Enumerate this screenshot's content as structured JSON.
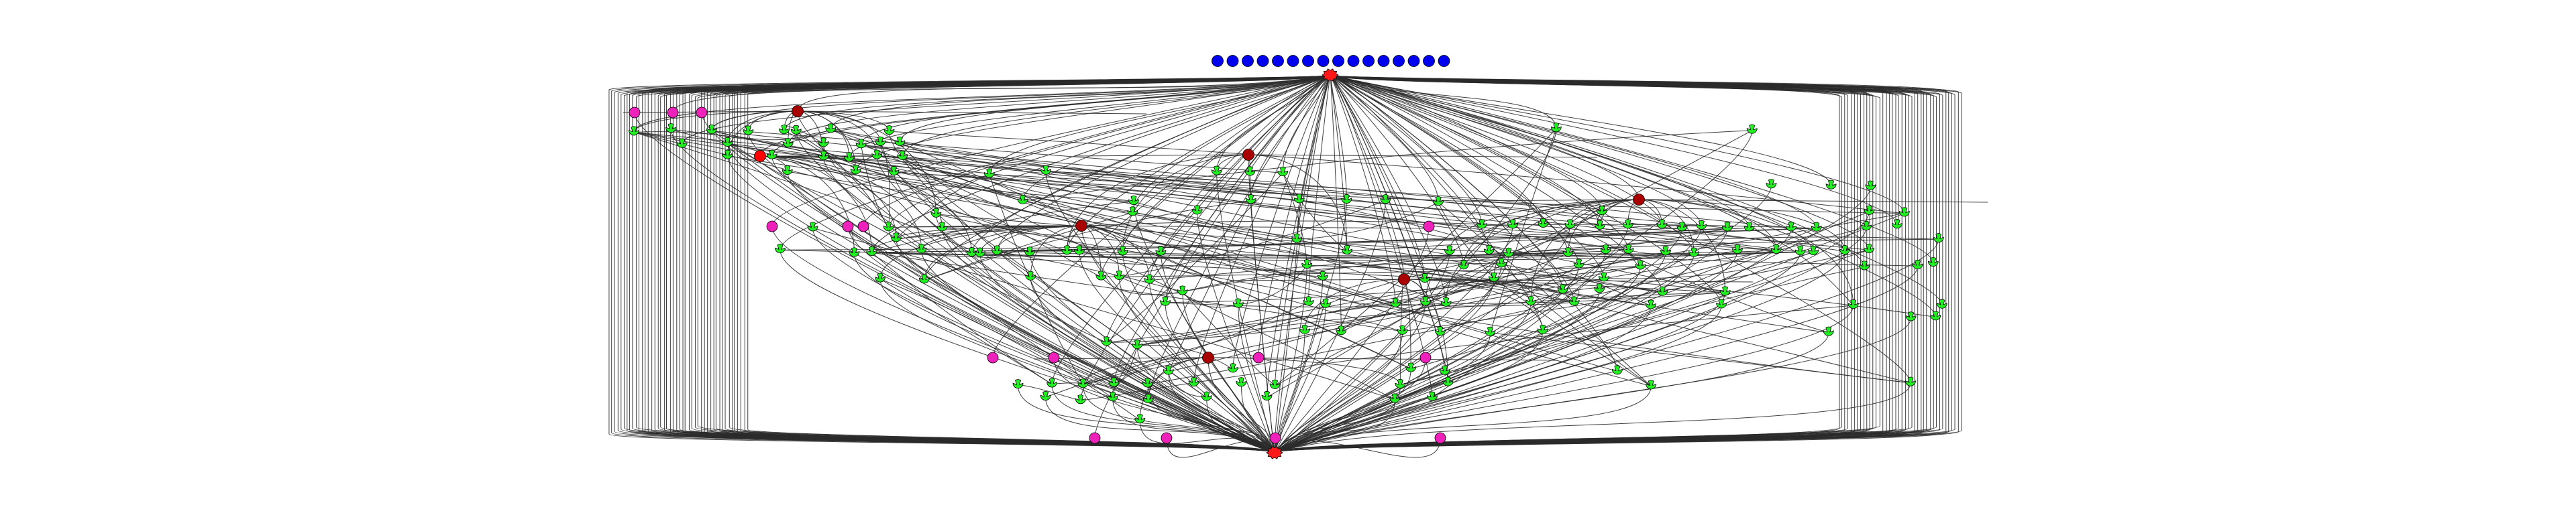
{
  "diagram": {
    "type": "directed-graph",
    "colors": {
      "background": "#ffffff",
      "edge": "#2b2b2b",
      "start_node": "#ff1a1a",
      "end_node": "#ff1a1a",
      "source_dot": "#0000ee",
      "gateway": "#a80000",
      "gateway_bright": "#ff0000",
      "task": "#22ee22",
      "event": "#ee22bb"
    },
    "node_shapes": {
      "source_dot": "circle",
      "start_node": "circle",
      "end_node": "circle",
      "gateway": "circle",
      "task": "wedge",
      "event": "circle"
    },
    "counts": {
      "source_dots": 16,
      "start_nodes": 1,
      "end_nodes": 1,
      "gateways": 6,
      "gateways_bright": 1,
      "tasks": 150,
      "events": 15
    }
  }
}
